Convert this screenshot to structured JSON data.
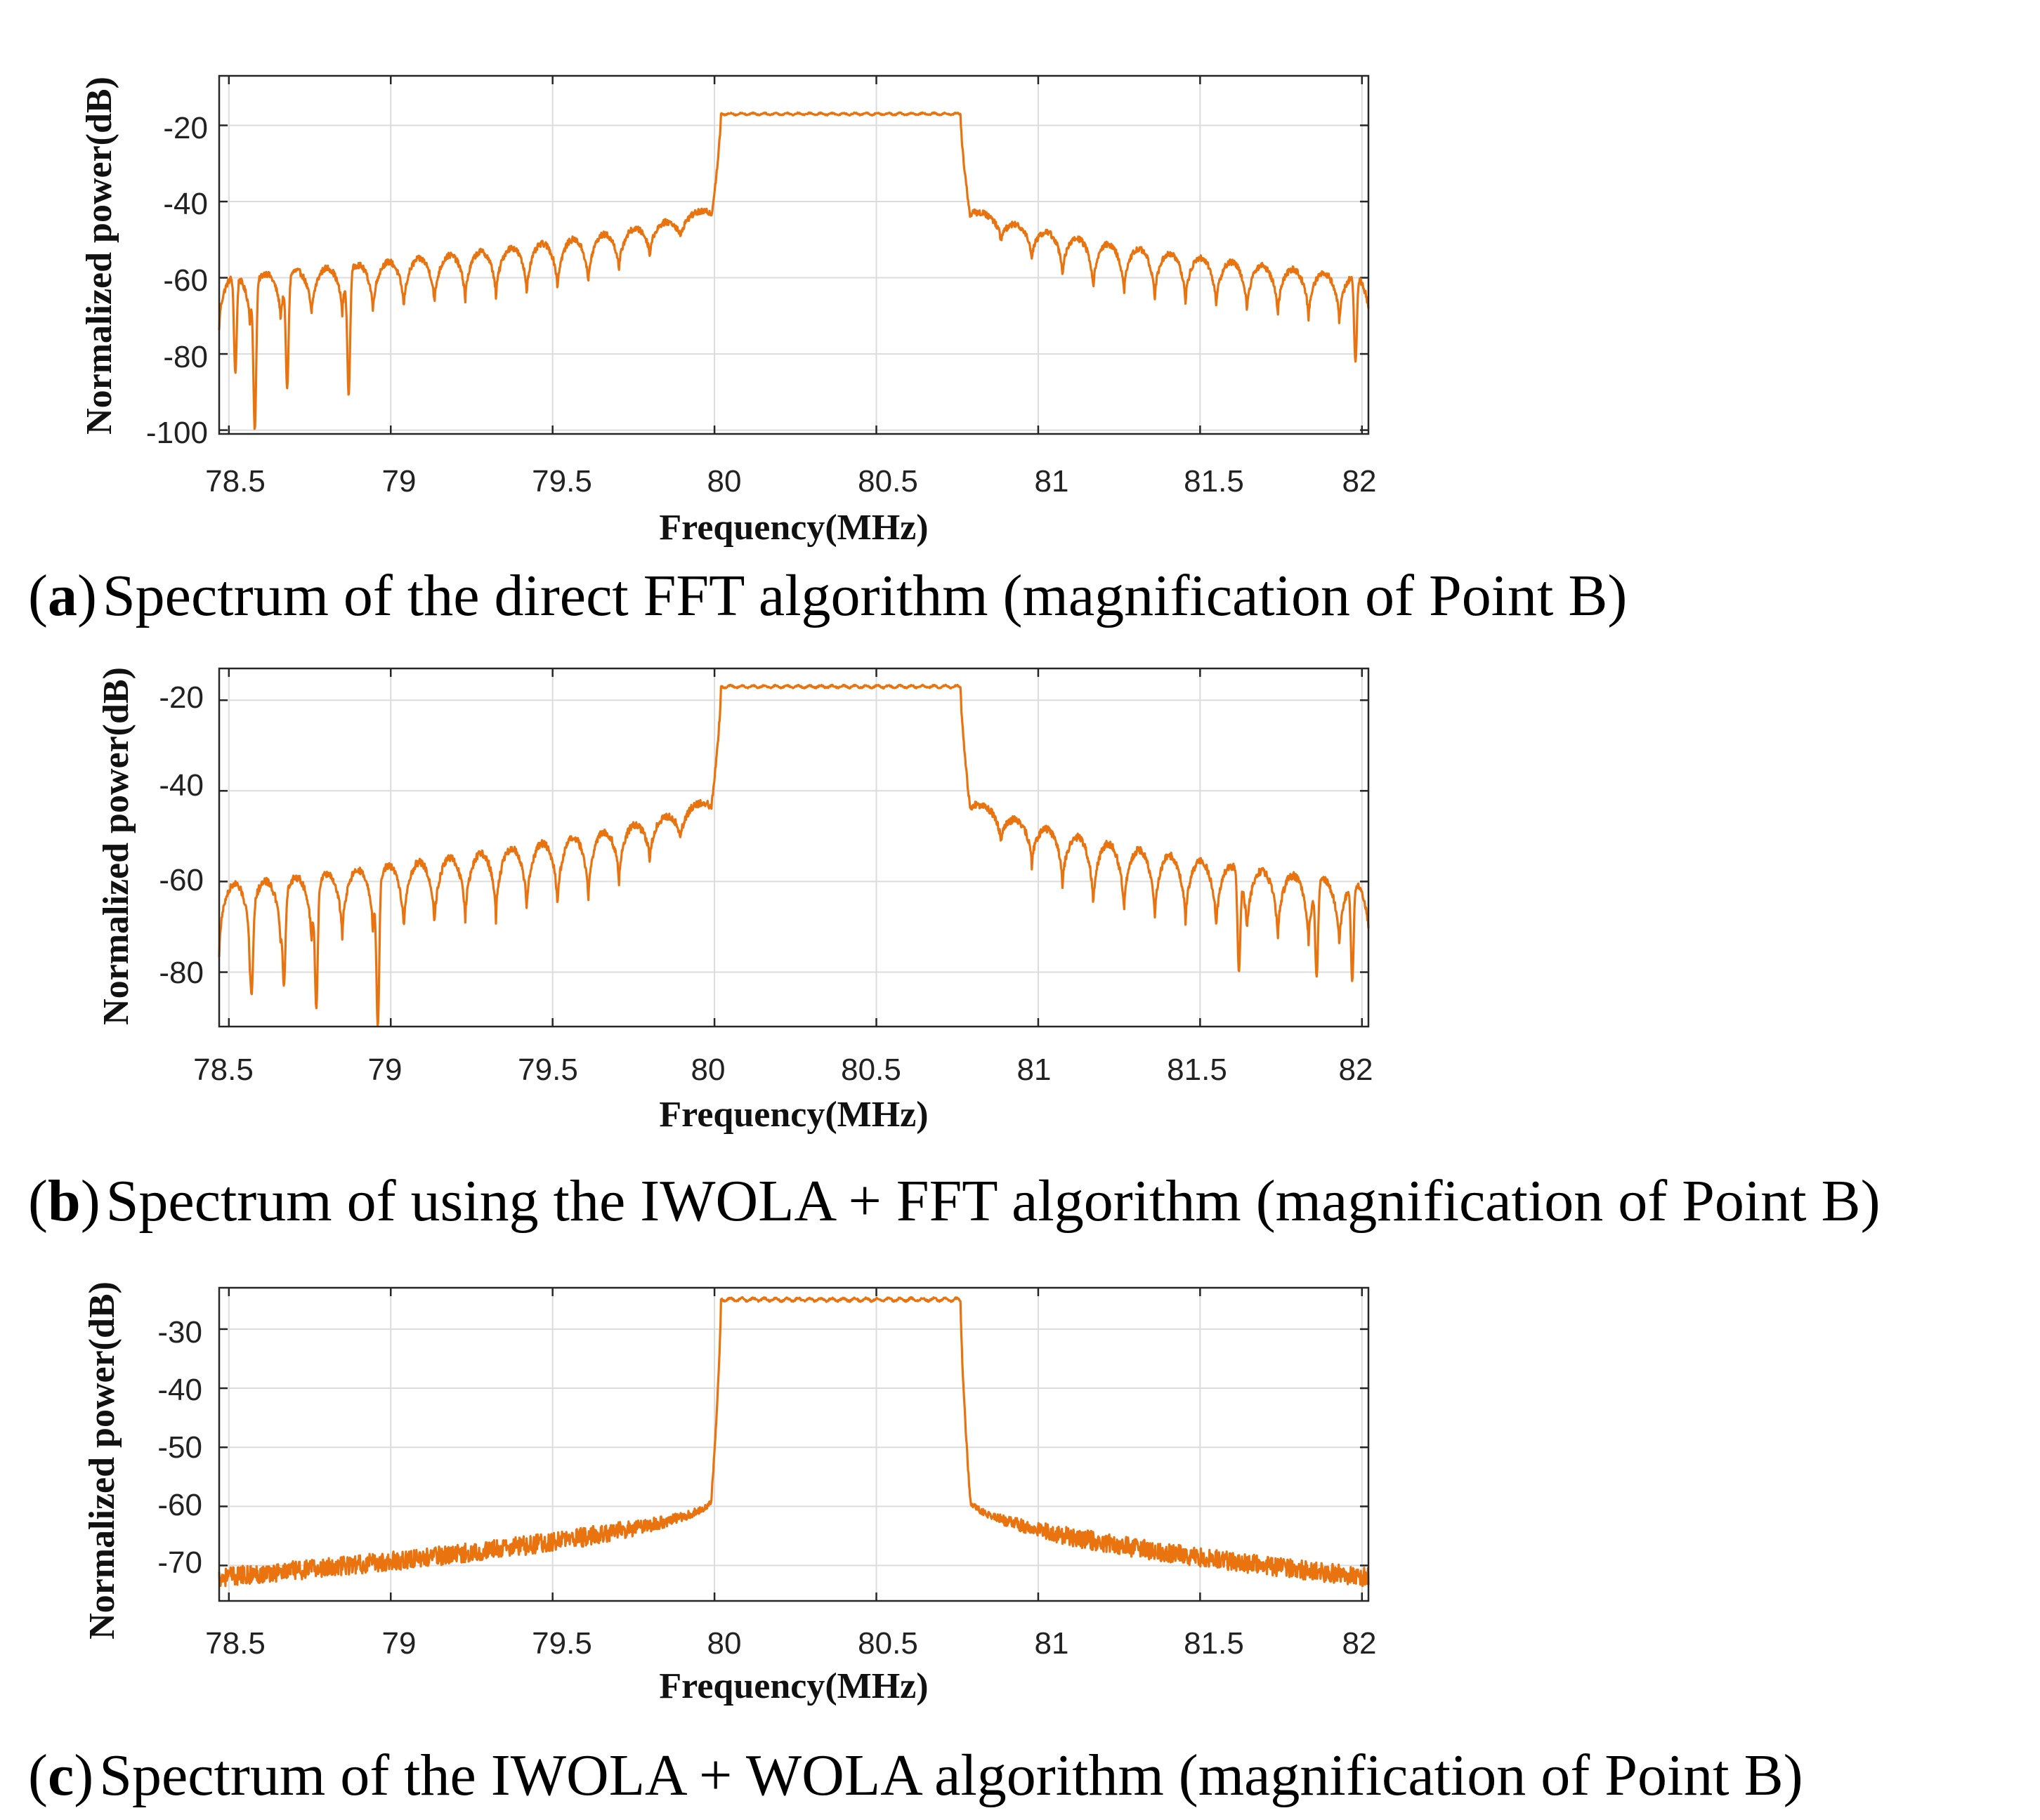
{
  "figure": {
    "line_color": "#E8730F",
    "panels": [
      {
        "caption_letter": "a",
        "caption_text": "Spectrum of the direct FFT algorithm (magnification of Point B)"
      },
      {
        "caption_letter": "b",
        "caption_text": "Spectrum of using the IWOLA + FFT algorithm (magnification of Point B)"
      },
      {
        "caption_letter": "c",
        "caption_text": "Spectrum of the IWOLA + WOLA algorithm (magnification of Point B)"
      }
    ]
  },
  "chart_data": [
    {
      "type": "line",
      "panel": "a",
      "title": "",
      "xlabel": "Frequency(MHz)",
      "ylabel": "Normalized power(dB)",
      "xlim": [
        78.47,
        82.02
      ],
      "ylim": [
        -101,
        -7
      ],
      "xticks": [
        78.5,
        79,
        79.5,
        80,
        80.5,
        81,
        81.5,
        82
      ],
      "xtick_labels": [
        "78.5",
        "79",
        "79.5",
        "80",
        "80.5",
        "81",
        "81.5",
        "82"
      ],
      "yticks": [
        -20,
        -40,
        -60,
        -80,
        -100
      ],
      "ytick_labels": [
        "-20",
        "-40",
        "-60",
        "-80",
        "-100"
      ],
      "grid": true,
      "series": [
        {
          "name": "spectrum",
          "profile": "sinc-sidelobes",
          "passband": [
            80.02,
            80.76
          ],
          "passband_level": -17,
          "shoulder_level": -44,
          "edge_envelope": -64,
          "ripple_depth": 14,
          "ripple_period_mhz": 0.095,
          "deep_nulls": [
            [
              78.52,
              -85
            ],
            [
              78.58,
              -100
            ],
            [
              78.68,
              -89
            ],
            [
              78.87,
              -91
            ],
            [
              81.98,
              -82
            ]
          ]
        }
      ]
    },
    {
      "type": "line",
      "panel": "b",
      "title": "",
      "xlabel": "Frequency(MHz)",
      "ylabel": "Normalized power(dB)",
      "xlim": [
        78.47,
        82.02
      ],
      "ylim": [
        -92,
        -13
      ],
      "xticks": [
        78.5,
        79,
        79.5,
        80,
        80.5,
        81,
        81.5,
        82
      ],
      "xtick_labels": [
        "78.5",
        "79",
        "79.5",
        "80",
        "80.5",
        "81",
        "81.5",
        "82"
      ],
      "yticks": [
        -20,
        -40,
        -60,
        -80
      ],
      "ytick_labels": [
        "-20",
        "-40",
        "-60",
        "-80"
      ],
      "grid": true,
      "series": [
        {
          "name": "spectrum",
          "profile": "sinc-sidelobes",
          "passband": [
            80.02,
            80.76
          ],
          "passband_level": -17,
          "shoulder_level": -44,
          "edge_envelope": -65,
          "ripple_depth": 16,
          "ripple_period_mhz": 0.095,
          "deep_nulls": [
            [
              78.57,
              -85
            ],
            [
              78.67,
              -83
            ],
            [
              78.77,
              -88
            ],
            [
              78.96,
              -92
            ],
            [
              81.62,
              -80
            ],
            [
              81.86,
              -81
            ],
            [
              81.97,
              -82
            ]
          ]
        }
      ]
    },
    {
      "type": "line",
      "panel": "c",
      "title": "",
      "xlabel": "Frequency(MHz)",
      "ylabel": "Normalized power(dB)",
      "xlim": [
        78.47,
        82.02
      ],
      "ylim": [
        -76,
        -23
      ],
      "xticks": [
        78.5,
        79,
        79.5,
        80,
        80.5,
        81,
        81.5,
        82
      ],
      "xtick_labels": [
        "78.5",
        "79",
        "79.5",
        "80",
        "80.5",
        "81",
        "81.5",
        "82"
      ],
      "yticks": [
        -30,
        -40,
        -50,
        -60,
        -70
      ],
      "ytick_labels": [
        "-30",
        "-40",
        "-50",
        "-60",
        "-70"
      ],
      "grid": true,
      "series": [
        {
          "name": "spectrum",
          "profile": "smooth-rolloff",
          "passband": [
            80.02,
            80.76
          ],
          "passband_level": -25,
          "shoulder_level": -59,
          "edge_envelope": -72,
          "noise_db": 1.6,
          "deep_nulls": []
        }
      ]
    }
  ]
}
